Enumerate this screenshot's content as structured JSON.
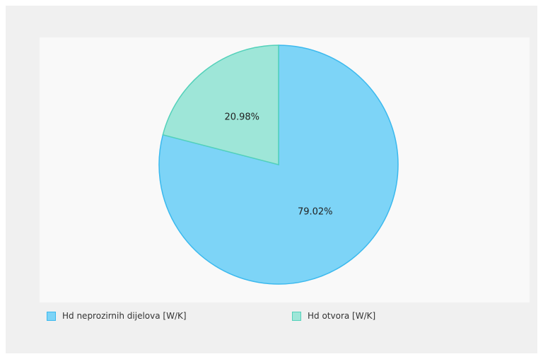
{
  "chart_data": {
    "type": "pie",
    "slices": [
      {
        "name": "Hd neprozirnih dijelova [W/K]",
        "value": 79.02,
        "label": "79.02%",
        "fill": "#7dd4f7",
        "stroke": "#3bb9ee"
      },
      {
        "name": "Hd otvora [W/K]",
        "value": 20.98,
        "label": "20.98%",
        "fill": "#9ee6d8",
        "stroke": "#53d1ba"
      }
    ],
    "legend_position": "bottom-left"
  }
}
